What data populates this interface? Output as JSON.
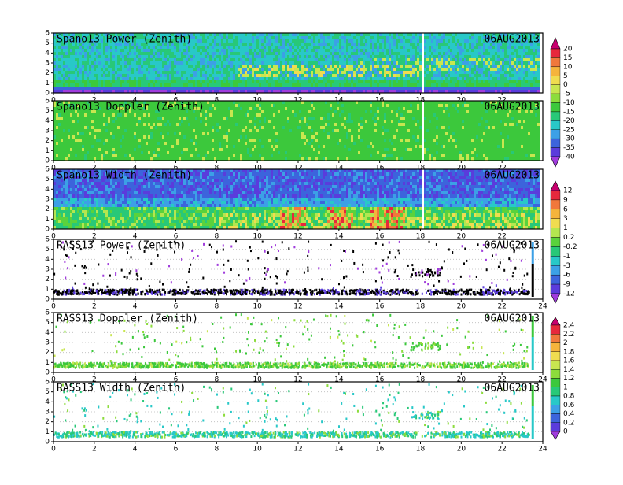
{
  "chart_data": [
    {
      "type": "heatmap",
      "title": "Spano13 Power (Zenith)",
      "date": "06AUG2013",
      "xlim": [
        0,
        24
      ],
      "xticks": [
        0,
        2,
        4,
        6,
        8,
        10,
        12,
        14,
        16,
        18,
        20,
        22
      ],
      "ylim": [
        0,
        6
      ],
      "yticks": [
        0,
        1,
        2,
        3,
        4,
        5,
        6
      ],
      "colorbar": 0,
      "grid": false
    },
    {
      "type": "heatmap",
      "title": "Spano13 Doppler (Zenith)",
      "date": "06AUG2013",
      "xlim": [
        0,
        24
      ],
      "xticks": [
        0,
        2,
        4,
        6,
        8,
        10,
        12,
        14,
        16,
        18,
        20,
        22
      ],
      "ylim": [
        0,
        6
      ],
      "yticks": [
        0,
        1,
        2,
        3,
        4,
        5,
        6
      ],
      "colorbar": 0,
      "grid": false
    },
    {
      "type": "heatmap",
      "title": "Spano13 Width (Zenith)",
      "date": "06AUG2013",
      "xlim": [
        0,
        24
      ],
      "xticks": [
        0,
        2,
        4,
        6,
        8,
        10,
        12,
        14,
        16,
        18,
        20,
        22
      ],
      "ylim": [
        0,
        6
      ],
      "yticks": [
        0,
        1,
        2,
        3,
        4,
        5,
        6
      ],
      "colorbar": 1,
      "grid": false
    },
    {
      "type": "scatter",
      "title": "RASS13 Power (Zenith)",
      "date": "06AUG2013",
      "xlim": [
        0,
        24
      ],
      "xticks": [
        0,
        2,
        4,
        6,
        8,
        10,
        12,
        14,
        16,
        18,
        20,
        22,
        24
      ],
      "ylim": [
        0,
        6
      ],
      "yticks": [
        0,
        1,
        2,
        3,
        4,
        5,
        6
      ],
      "colorbar": 1,
      "grid": true
    },
    {
      "type": "scatter",
      "title": "RASS13 Doppler (Zenith)",
      "date": "06AUG2013",
      "xlim": [
        0,
        24
      ],
      "xticks": [
        0,
        2,
        4,
        6,
        8,
        10,
        12,
        14,
        16,
        18,
        20,
        22,
        24
      ],
      "ylim": [
        0,
        6
      ],
      "yticks": [
        0,
        1,
        2,
        3,
        4,
        5,
        6
      ],
      "colorbar": 2,
      "grid": true
    },
    {
      "type": "scatter",
      "title": "RASS13 Width (Zenith)",
      "date": "06AUG2013",
      "xlim": [
        0,
        24
      ],
      "xticks": [
        0,
        2,
        4,
        6,
        8,
        10,
        12,
        14,
        16,
        18,
        20,
        22,
        24
      ],
      "ylim": [
        0,
        6
      ],
      "yticks": [
        0,
        1,
        2,
        3,
        4,
        5,
        6
      ],
      "colorbar": 2,
      "grid": true
    }
  ],
  "colorbars": [
    {
      "labels": [
        20,
        15,
        10,
        5,
        0,
        -5,
        -10,
        -15,
        -20,
        -25,
        -30,
        -35,
        -40
      ],
      "colors": [
        "#c8006e",
        "#e6283c",
        "#f0783c",
        "#f5b43c",
        "#f0dc50",
        "#c8e650",
        "#8cdc3c",
        "#3cc83c",
        "#28c878",
        "#28c8c8",
        "#3ca0e6",
        "#3c64dc",
        "#5a3cdc",
        "#a03cdc"
      ]
    },
    {
      "labels": [
        12,
        9,
        6,
        3,
        1,
        0.2,
        -0.2,
        -1,
        -3,
        -6,
        -9,
        -12
      ],
      "colors": [
        "#c8006e",
        "#e6283c",
        "#f0783c",
        "#f5b43c",
        "#f0dc50",
        "#b4e650",
        "#5ad23c",
        "#28c878",
        "#28c8c8",
        "#3ca0e6",
        "#3c64dc",
        "#5a3cdc",
        "#a03cdc"
      ]
    },
    {
      "labels": [
        2.4,
        2.2,
        2,
        1.8,
        1.6,
        1.4,
        1.2,
        1,
        0.8,
        0.6,
        0.4,
        0.2,
        0
      ],
      "colors": [
        "#c8006e",
        "#e6283c",
        "#f0783c",
        "#f5b43c",
        "#f0dc50",
        "#c8e650",
        "#8cdc3c",
        "#3cc83c",
        "#28c878",
        "#28c8c8",
        "#3ca0e6",
        "#3c64dc",
        "#5a3cdc",
        "#a03cdc"
      ]
    }
  ]
}
